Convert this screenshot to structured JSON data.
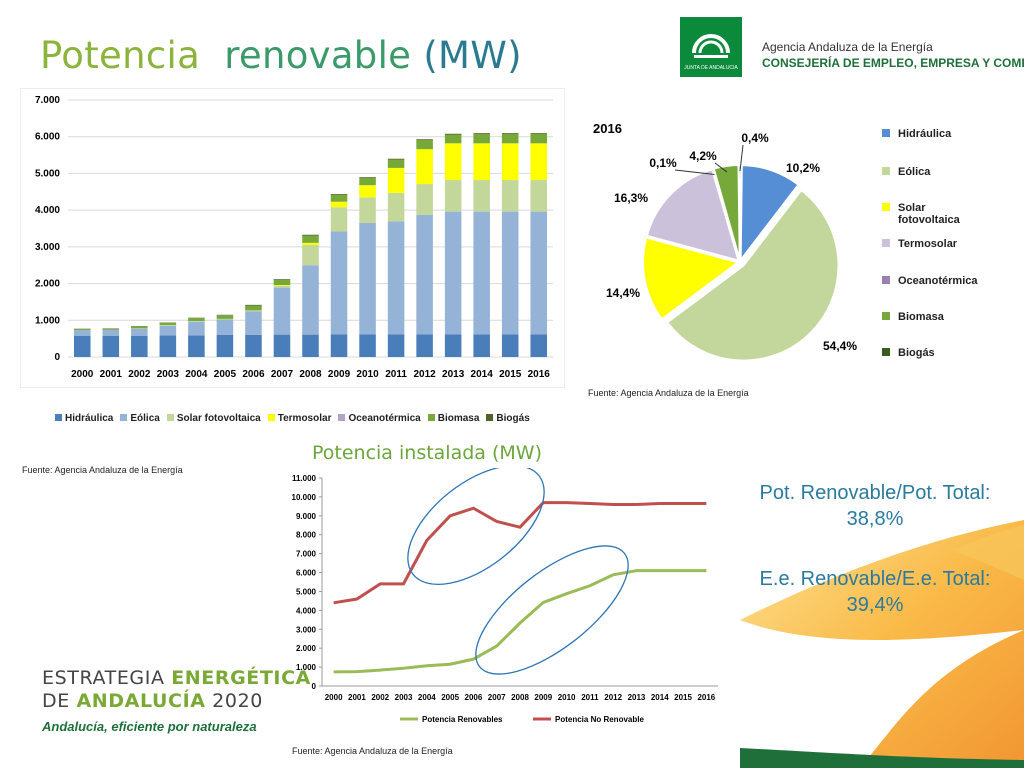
{
  "header": {
    "title_part1": "Potencia",
    "title_part2": "renovable",
    "title_part3": "(MW)",
    "agency_line1": "Agencia Andaluza de la Energía",
    "agency_line2": "CONSEJERÍA DE EMPLEO, EMPRESA Y COMERCIO",
    "logo_text": "JUNTA DE ANDALUCIA",
    "logo_color": "#0c8a3c"
  },
  "sources": {
    "bar": "Fuente: Agencia Andaluza de la  Energía",
    "pie": "Fuente: Agencia Andaluza de la  Energía",
    "line": "Fuente: Agencia Andaluza de la  Energía"
  },
  "ratios": {
    "ratio1_line1": "Pot. Renovable/Pot. Total:",
    "ratio1_line2": "38,8%",
    "ratio2_line1": "E.e. Renovable/E.e. Total:",
    "ratio2_line2": "39,4%"
  },
  "branding": {
    "strat_line1_a": "ESTRATEGIA ",
    "strat_line1_b": "ENERGÉTICA",
    "strat_line2_a": "DE ",
    "strat_line2_b": "ANDALUCÍA",
    "strat_line2_c": " 2020",
    "tagline": "Andalucía, eficiente por naturaleza"
  },
  "chart_data": [
    {
      "type": "bar",
      "stacked": true,
      "categories": [
        "2000",
        "2001",
        "2002",
        "2003",
        "2004",
        "2005",
        "2006",
        "2007",
        "2008",
        "2009",
        "2010",
        "2011",
        "2012",
        "2013",
        "2014",
        "2015",
        "2016"
      ],
      "ylim": [
        0,
        7000
      ],
      "yticks": [
        "0",
        "1.000",
        "2.000",
        "3.000",
        "4.000",
        "5.000",
        "6.000",
        "7.000"
      ],
      "grid": true,
      "legend_position": "bottom",
      "series": [
        {
          "name": "Hidráulica",
          "color": "#4a7ebb",
          "values": [
            580,
            580,
            580,
            590,
            590,
            600,
            600,
            610,
            610,
            620,
            620,
            620,
            620,
            620,
            620,
            620,
            620
          ]
        },
        {
          "name": "Eólica",
          "color": "#95b3d7",
          "values": [
            150,
            160,
            190,
            260,
            370,
            420,
            640,
            1280,
            1890,
            2800,
            3030,
            3070,
            3250,
            3340,
            3340,
            3340,
            3340
          ]
        },
        {
          "name": "Solar fotovoltaica",
          "color": "#c4d79b",
          "values": [
            0,
            0,
            10,
            20,
            20,
            20,
            30,
            50,
            550,
            660,
            700,
            780,
            840,
            860,
            860,
            860,
            860
          ]
        },
        {
          "name": "Termosolar",
          "color": "#ffff00",
          "values": [
            0,
            0,
            0,
            0,
            0,
            0,
            0,
            20,
            60,
            150,
            330,
            680,
            950,
            1000,
            1000,
            1000,
            1000
          ]
        },
        {
          "name": "Oceanotérmica",
          "color": "#b3a2c7",
          "values": [
            0,
            0,
            0,
            0,
            0,
            0,
            0,
            0,
            0,
            0,
            0,
            0,
            0,
            0,
            0,
            0,
            0
          ]
        },
        {
          "name": "Biomasa",
          "color": "#77a83a",
          "values": [
            30,
            30,
            50,
            60,
            80,
            100,
            130,
            140,
            200,
            190,
            200,
            230,
            250,
            240,
            260,
            260,
            260
          ]
        },
        {
          "name": "Biogás",
          "color": "#4f6228",
          "values": [
            10,
            10,
            10,
            10,
            10,
            10,
            20,
            20,
            20,
            20,
            20,
            20,
            20,
            20,
            20,
            20,
            20
          ]
        }
      ]
    },
    {
      "type": "pie",
      "title": "2016",
      "legend_position": "right",
      "slices": [
        {
          "name": "Hidráulica",
          "label": "10,2%",
          "value": 10.2,
          "color": "#558ed5"
        },
        {
          "name": "Eólica",
          "label": "54,4%",
          "value": 54.4,
          "color": "#c3d69b"
        },
        {
          "name": "Solar fotovoltaica",
          "label": "14,4%",
          "value": 14.4,
          "color": "#ffff00"
        },
        {
          "name": "Termosolar",
          "label": "16,3%",
          "value": 16.3,
          "color": "#ccc1da"
        },
        {
          "name": "Oceanotérmica",
          "label": "0,1%",
          "value": 0.1,
          "color": "#9b7fb5"
        },
        {
          "name": "Biomasa",
          "label": "4,2%",
          "value": 4.2,
          "color": "#77a83a"
        },
        {
          "name": "Biogás",
          "label": "0,4%",
          "value": 0.4,
          "color": "#3a5a20"
        }
      ],
      "legend_labels": [
        {
          "line1": "Hidráulica"
        },
        {
          "line1": "Eólica"
        },
        {
          "line1": "Solar",
          "line2": "fotovoltaica"
        },
        {
          "line1": "Termosolar"
        },
        {
          "line1": "Oceanotérmica"
        },
        {
          "line1": "Biomasa"
        },
        {
          "line1": "Biogás"
        }
      ]
    },
    {
      "type": "line",
      "title": "Potencia instalada (MW)",
      "x": [
        "2000",
        "2001",
        "2002",
        "2003",
        "2004",
        "2005",
        "2006",
        "2007",
        "2008",
        "2009",
        "2010",
        "2011",
        "2012",
        "2013",
        "2014",
        "2015",
        "2016"
      ],
      "ylim": [
        0,
        11000
      ],
      "yticks": [
        "0",
        "1.000",
        "2.000",
        "3.000",
        "4.000",
        "5.000",
        "6.000",
        "7.000",
        "8.000",
        "9.000",
        "10.000",
        "11.000"
      ],
      "legend_position": "bottom",
      "series": [
        {
          "name": "Potencia Renovables",
          "color": "#9bbb59",
          "values": [
            750,
            760,
            840,
            940,
            1070,
            1150,
            1420,
            2110,
            3330,
            4420,
            4880,
            5300,
            5880,
            6100,
            6100,
            6100,
            6100
          ]
        },
        {
          "name": "Potencia No Renovable",
          "color": "#c0504d",
          "values": [
            4400,
            4600,
            5400,
            5400,
            7700,
            9000,
            9400,
            8700,
            8400,
            9700,
            9700,
            9650,
            9600,
            9600,
            9650,
            9650,
            9650
          ]
        }
      ]
    }
  ]
}
